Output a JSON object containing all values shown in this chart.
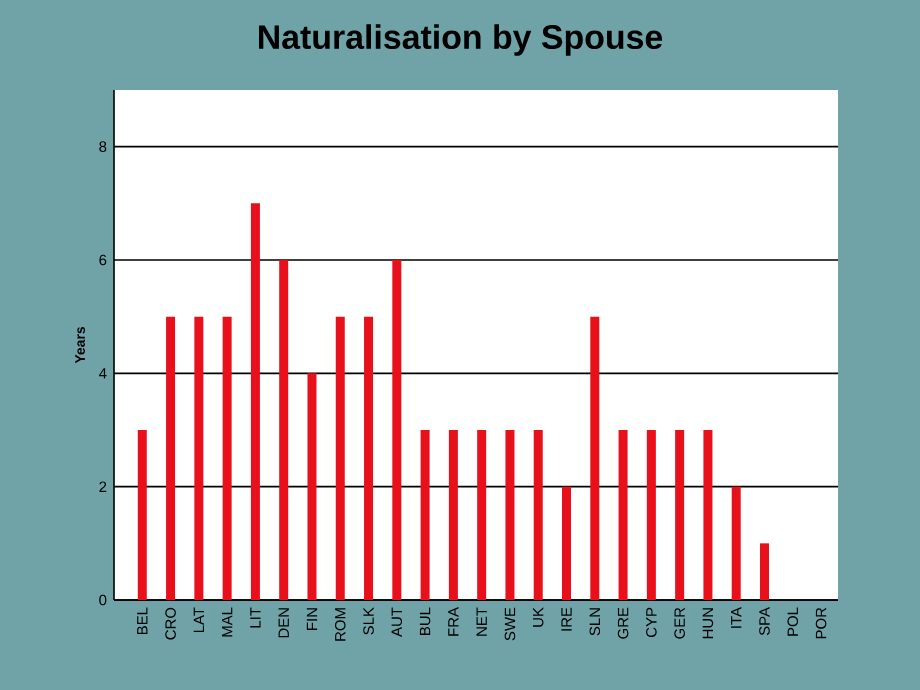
{
  "chart_data": {
    "type": "bar",
    "title": "Naturalisation by Spouse",
    "ylabel": "Years",
    "categories": [
      "BEL",
      "CRO",
      "LAT",
      "MAL",
      "LIT",
      "DEN",
      "FIN",
      "ROM",
      "SLK",
      "AUT",
      "BUL",
      "FRA",
      "NET",
      "SWE",
      "UK",
      "IRE",
      "SLN",
      "GRE",
      "CYP",
      "GER",
      "HUN",
      "ITA",
      "SPA",
      "POL",
      "POR"
    ],
    "values": [
      3,
      5,
      5,
      5,
      7,
      6,
      4,
      5,
      5,
      6,
      3,
      3,
      3,
      3,
      3,
      2,
      5,
      3,
      3,
      3,
      3,
      2,
      1,
      0,
      0
    ],
    "color": "#e8101a",
    "ylim": [
      0,
      9
    ],
    "yticks": [
      0,
      2,
      4,
      6,
      8
    ],
    "grid": "y"
  }
}
